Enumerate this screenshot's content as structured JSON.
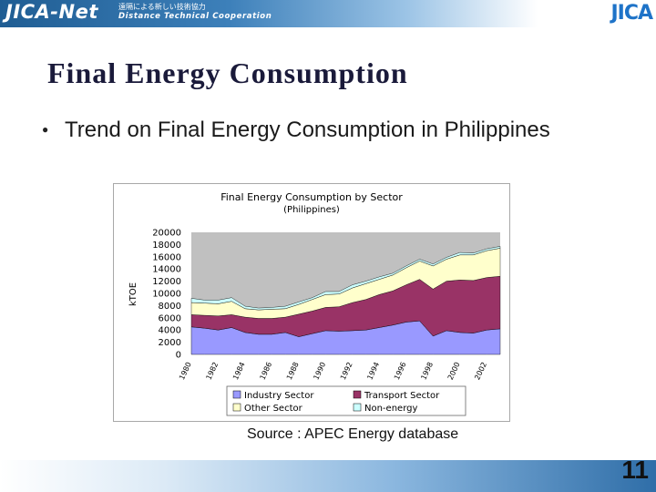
{
  "header": {
    "logo_text": "JICA-Net",
    "subtitle_jp": "遠隔による新しい技術協力",
    "subtitle_en": "Distance Technical Cooperation",
    "org_logo": "JICA",
    "logo_icon": "jica-wordmark-icon"
  },
  "slide": {
    "title": "Final Energy Consumption",
    "bullet_icon": "bullet-dot-icon",
    "bullet_glyph": "●",
    "bullet_text": "Trend on Final Energy Consumption in Philippines",
    "source": "Source : APEC Energy database",
    "page_number": "11"
  },
  "colors": {
    "industry": "#9999ff",
    "transport": "#993366",
    "other": "#ffffcc",
    "non_energy": "#ccffff",
    "plot_bg": "#c0c0c0"
  },
  "chart_data": {
    "type": "area",
    "stacked": true,
    "title": "Final Energy Consumption by Sector",
    "subtitle": "(Philippines)",
    "xlabel": "",
    "ylabel": "kTOE",
    "x": [
      1980,
      1981,
      1982,
      1983,
      1984,
      1985,
      1986,
      1987,
      1988,
      1989,
      1990,
      1991,
      1992,
      1993,
      1994,
      1995,
      1996,
      1997,
      1998,
      1999,
      2000,
      2001,
      2002,
      2003
    ],
    "x_tick_labels": [
      "1980",
      "1982",
      "1984",
      "1986",
      "1988",
      "1990",
      "1992",
      "1994",
      "1996",
      "1998",
      "2000",
      "2002"
    ],
    "y_tick_labels": [
      "0",
      "2000",
      "4000",
      "6000",
      "8000",
      "10000",
      "12000",
      "14000",
      "16000",
      "18000",
      "20000"
    ],
    "ylim": [
      0,
      20000
    ],
    "grid": false,
    "legend_position": "bottom",
    "series": [
      {
        "name": "Industry Sector",
        "values": [
          4500,
          4300,
          4000,
          4400,
          3600,
          3300,
          3300,
          3600,
          2900,
          3400,
          3900,
          3800,
          3900,
          4000,
          4400,
          4800,
          5300,
          5500,
          3000,
          3900,
          3600,
          3500,
          4000,
          4200
        ]
      },
      {
        "name": "Transport Sector",
        "values": [
          2000,
          2100,
          2300,
          2100,
          2500,
          2600,
          2600,
          2500,
          3700,
          3700,
          3800,
          4000,
          4600,
          5000,
          5400,
          5600,
          6100,
          6800,
          7700,
          8100,
          8600,
          8600,
          8600,
          8600
        ]
      },
      {
        "name": "Other Sector",
        "values": [
          2000,
          2000,
          2000,
          2200,
          1400,
          1400,
          1500,
          1400,
          1600,
          1900,
          2100,
          2100,
          2400,
          2600,
          2500,
          2600,
          2800,
          3000,
          3800,
          3600,
          4100,
          4200,
          4400,
          4600
        ]
      },
      {
        "name": "Non-energy",
        "values": [
          700,
          500,
          600,
          600,
          400,
          300,
          300,
          400,
          400,
          300,
          500,
          400,
          500,
          400,
          400,
          300,
          300,
          300,
          300,
          300,
          400,
          300,
          300,
          300
        ]
      }
    ]
  }
}
